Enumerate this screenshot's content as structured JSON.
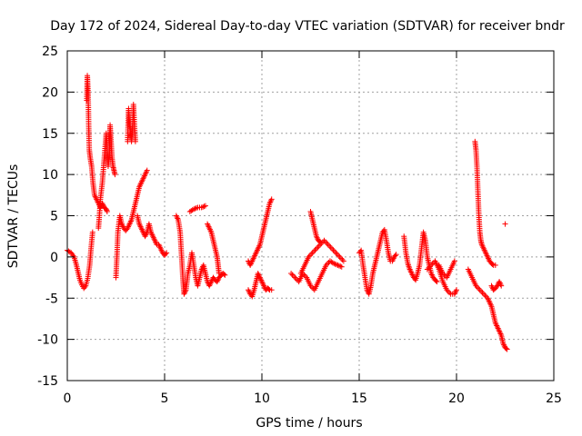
{
  "chart_data": {
    "type": "scatter",
    "title": "Day 172 of 2024, Sidereal Day-to-day VTEC variation (SDTVAR) for receiver bndr",
    "xlabel": "GPS time / hours",
    "ylabel": "SDTVAR / TECUs",
    "xlim": [
      0,
      25
    ],
    "ylim": [
      -15,
      25
    ],
    "xticks": [
      "0",
      "5",
      "10",
      "15",
      "20",
      "25"
    ],
    "yticks": [
      "-15",
      "-10",
      "-5",
      "0",
      "5",
      "10",
      "15",
      "20",
      "25"
    ],
    "grid": true,
    "marker": "plus",
    "color": "#ff0000",
    "segments": [
      [
        [
          0.0,
          0.8
        ],
        [
          0.2,
          0.5
        ],
        [
          0.35,
          0.0
        ],
        [
          0.45,
          -0.8
        ],
        [
          0.55,
          -1.8
        ],
        [
          0.65,
          -2.8
        ],
        [
          0.75,
          -3.4
        ],
        [
          0.85,
          -3.8
        ],
        [
          0.95,
          -3.5
        ],
        [
          1.05,
          -2.6
        ],
        [
          1.15,
          -1.0
        ],
        [
          1.22,
          1.0
        ],
        [
          1.3,
          3.0
        ]
      ],
      [
        [
          1.0,
          19.0
        ],
        [
          1.03,
          22.0
        ],
        [
          1.07,
          20.0
        ],
        [
          1.1,
          16.0
        ],
        [
          1.13,
          13.0
        ],
        [
          1.18,
          12.0
        ],
        [
          1.25,
          11.0
        ],
        [
          1.32,
          9.0
        ],
        [
          1.4,
          7.5
        ],
        [
          1.5,
          7.0
        ],
        [
          1.6,
          6.5
        ],
        [
          1.7,
          6.0
        ],
        [
          1.8,
          6.5
        ],
        [
          1.9,
          6.0
        ],
        [
          2.0,
          5.8
        ],
        [
          2.05,
          5.5
        ]
      ],
      [
        [
          1.6,
          3.5
        ],
        [
          1.65,
          5.0
        ],
        [
          1.7,
          7.0
        ],
        [
          1.8,
          9.0
        ],
        [
          1.9,
          12.0
        ],
        [
          2.0,
          15.0
        ],
        [
          2.05,
          13.0
        ],
        [
          2.1,
          11.0
        ],
        [
          2.15,
          12.5
        ],
        [
          2.2,
          16.0
        ],
        [
          2.25,
          14.0
        ],
        [
          2.3,
          12.0
        ],
        [
          2.35,
          11.0
        ],
        [
          2.4,
          10.5
        ],
        [
          2.45,
          10.0
        ]
      ],
      [
        [
          2.5,
          -2.5
        ],
        [
          2.55,
          0.0
        ],
        [
          2.6,
          3.0
        ],
        [
          2.7,
          5.0
        ],
        [
          2.8,
          4.0
        ],
        [
          2.9,
          3.5
        ],
        [
          3.0,
          3.2
        ],
        [
          3.1,
          3.5
        ],
        [
          3.2,
          4.0
        ],
        [
          3.3,
          4.5
        ],
        [
          3.4,
          5.5
        ],
        [
          3.5,
          6.5
        ],
        [
          3.6,
          7.5
        ],
        [
          3.7,
          8.5
        ],
        [
          3.8,
          9.0
        ],
        [
          3.9,
          9.5
        ],
        [
          4.0,
          10.0
        ],
        [
          4.1,
          10.5
        ]
      ],
      [
        [
          3.1,
          14.0
        ],
        [
          3.15,
          18.0
        ],
        [
          3.2,
          16.0
        ],
        [
          3.25,
          15.0
        ],
        [
          3.3,
          14.0
        ],
        [
          3.35,
          15.5
        ],
        [
          3.4,
          18.5
        ],
        [
          3.45,
          16.0
        ],
        [
          3.5,
          14.0
        ]
      ],
      [
        [
          3.6,
          5.0
        ],
        [
          3.7,
          4.0
        ],
        [
          3.8,
          3.5
        ],
        [
          3.9,
          3.0
        ],
        [
          4.0,
          2.5
        ],
        [
          4.1,
          3.0
        ],
        [
          4.2,
          4.0
        ],
        [
          4.3,
          3.0
        ],
        [
          4.4,
          2.5
        ],
        [
          4.5,
          2.0
        ],
        [
          4.6,
          1.5
        ],
        [
          4.7,
          1.5
        ],
        [
          4.8,
          1.0
        ],
        [
          4.9,
          0.5
        ],
        [
          5.0,
          0.2
        ],
        [
          5.1,
          0.5
        ]
      ],
      [
        [
          5.6,
          5.0
        ],
        [
          5.7,
          4.5
        ],
        [
          5.8,
          3.0
        ],
        [
          5.85,
          1.0
        ],
        [
          5.9,
          -1.0
        ],
        [
          5.95,
          -3.0
        ],
        [
          6.0,
          -4.5
        ],
        [
          6.1,
          -4.0
        ],
        [
          6.2,
          -2.0
        ],
        [
          6.3,
          -1.0
        ],
        [
          6.4,
          0.5
        ],
        [
          6.5,
          -1.0
        ],
        [
          6.6,
          -2.5
        ],
        [
          6.7,
          -3.5
        ],
        [
          6.8,
          -2.5
        ],
        [
          6.9,
          -1.5
        ],
        [
          7.0,
          -1.0
        ],
        [
          7.1,
          -2.0
        ],
        [
          7.2,
          -3.0
        ],
        [
          7.3,
          -3.5
        ],
        [
          7.4,
          -3.0
        ],
        [
          7.5,
          -2.5
        ],
        [
          7.6,
          -2.8
        ],
        [
          7.7,
          -3.0
        ],
        [
          7.8,
          -2.5
        ],
        [
          7.9,
          -2.2
        ],
        [
          8.0,
          -2.0
        ],
        [
          8.1,
          -2.2
        ]
      ],
      [
        [
          6.3,
          5.5
        ],
        [
          6.5,
          5.8
        ],
        [
          6.7,
          6.0
        ],
        [
          6.9,
          6.0
        ],
        [
          7.1,
          6.2
        ]
      ],
      [
        [
          7.2,
          4.0
        ],
        [
          7.3,
          3.5
        ],
        [
          7.4,
          3.0
        ],
        [
          7.5,
          2.0
        ],
        [
          7.6,
          1.0
        ],
        [
          7.7,
          0.0
        ],
        [
          7.75,
          -1.0
        ],
        [
          7.8,
          -2.0
        ]
      ],
      [
        [
          9.3,
          -4.0
        ],
        [
          9.4,
          -4.5
        ],
        [
          9.5,
          -4.8
        ],
        [
          9.6,
          -4.0
        ],
        [
          9.7,
          -3.0
        ],
        [
          9.8,
          -2.0
        ],
        [
          9.9,
          -2.5
        ],
        [
          10.0,
          -3.0
        ],
        [
          10.1,
          -3.5
        ],
        [
          10.2,
          -4.0
        ],
        [
          10.3,
          -3.8
        ],
        [
          10.4,
          -4.0
        ],
        [
          10.5,
          -4.0
        ]
      ],
      [
        [
          9.3,
          -0.5
        ],
        [
          9.4,
          -1.0
        ],
        [
          9.5,
          -0.5
        ],
        [
          9.6,
          0.0
        ],
        [
          9.7,
          0.5
        ],
        [
          9.8,
          1.0
        ],
        [
          9.9,
          1.5
        ],
        [
          10.0,
          2.5
        ],
        [
          10.1,
          3.5
        ],
        [
          10.2,
          4.5
        ],
        [
          10.3,
          5.5
        ],
        [
          10.4,
          6.5
        ],
        [
          10.5,
          7.0
        ]
      ],
      [
        [
          11.5,
          -2.0
        ],
        [
          11.7,
          -2.5
        ],
        [
          11.9,
          -3.0
        ],
        [
          12.1,
          -2.0
        ],
        [
          12.3,
          -2.5
        ],
        [
          12.5,
          -3.5
        ],
        [
          12.7,
          -4.0
        ],
        [
          12.9,
          -3.0
        ],
        [
          13.1,
          -2.0
        ],
        [
          13.3,
          -1.0
        ],
        [
          13.5,
          -0.5
        ],
        [
          13.7,
          -0.8
        ],
        [
          13.9,
          -1.0
        ],
        [
          14.1,
          -1.2
        ]
      ],
      [
        [
          12.0,
          -2.0
        ],
        [
          12.2,
          -1.0
        ],
        [
          12.4,
          0.0
        ],
        [
          12.6,
          0.5
        ],
        [
          12.8,
          1.0
        ],
        [
          13.0,
          1.5
        ],
        [
          13.2,
          2.0
        ],
        [
          13.4,
          1.5
        ],
        [
          13.6,
          1.0
        ],
        [
          13.8,
          0.5
        ],
        [
          14.0,
          0.0
        ],
        [
          14.2,
          -0.5
        ]
      ],
      [
        [
          12.5,
          5.5
        ],
        [
          12.6,
          4.5
        ],
        [
          12.7,
          3.5
        ],
        [
          12.8,
          2.5
        ],
        [
          12.9,
          2.0
        ],
        [
          13.0,
          1.8
        ]
      ],
      [
        [
          15.0,
          0.5
        ],
        [
          15.1,
          0.8
        ],
        [
          15.2,
          -1.0
        ],
        [
          15.3,
          -2.5
        ],
        [
          15.4,
          -4.0
        ],
        [
          15.5,
          -4.5
        ],
        [
          15.6,
          -3.5
        ],
        [
          15.7,
          -2.0
        ],
        [
          15.8,
          -1.0
        ],
        [
          15.9,
          0.0
        ],
        [
          16.0,
          1.0
        ],
        [
          16.1,
          2.0
        ],
        [
          16.2,
          3.0
        ],
        [
          16.3,
          3.3
        ],
        [
          16.4,
          2.0
        ],
        [
          16.5,
          0.5
        ],
        [
          16.6,
          -0.5
        ],
        [
          16.7,
          -0.5
        ],
        [
          16.8,
          0.0
        ],
        [
          16.9,
          0.3
        ]
      ],
      [
        [
          17.3,
          2.5
        ],
        [
          17.4,
          0.5
        ],
        [
          17.5,
          -0.8
        ],
        [
          17.6,
          -1.5
        ],
        [
          17.7,
          -2.0
        ],
        [
          17.8,
          -2.5
        ],
        [
          17.9,
          -2.8
        ],
        [
          18.0,
          -2.0
        ],
        [
          18.1,
          -1.0
        ],
        [
          18.2,
          1.0
        ],
        [
          18.3,
          3.0
        ],
        [
          18.4,
          2.0
        ],
        [
          18.5,
          0.0
        ],
        [
          18.6,
          -1.0
        ],
        [
          18.7,
          -2.0
        ],
        [
          18.8,
          -2.5
        ],
        [
          18.9,
          -2.8
        ],
        [
          19.0,
          -3.0
        ]
      ],
      [
        [
          18.5,
          -1.5
        ],
        [
          18.7,
          -1.0
        ],
        [
          18.9,
          -0.5
        ],
        [
          19.1,
          -1.5
        ],
        [
          19.3,
          -3.0
        ],
        [
          19.5,
          -4.0
        ],
        [
          19.7,
          -4.5
        ],
        [
          19.9,
          -4.5
        ],
        [
          20.0,
          -4.0
        ]
      ],
      [
        [
          19.1,
          -1.0
        ],
        [
          19.3,
          -2.0
        ],
        [
          19.5,
          -2.5
        ],
        [
          19.7,
          -1.5
        ],
        [
          19.9,
          -0.5
        ]
      ],
      [
        [
          20.6,
          -1.5
        ],
        [
          20.8,
          -2.5
        ],
        [
          21.0,
          -3.5
        ],
        [
          21.2,
          -4.0
        ],
        [
          21.4,
          -4.5
        ],
        [
          21.6,
          -5.0
        ],
        [
          21.7,
          -5.5
        ],
        [
          21.8,
          -6.0
        ],
        [
          21.9,
          -7.0
        ],
        [
          22.0,
          -8.0
        ],
        [
          22.1,
          -8.5
        ],
        [
          22.2,
          -9.0
        ],
        [
          22.3,
          -9.5
        ],
        [
          22.4,
          -10.5
        ],
        [
          22.5,
          -11.0
        ],
        [
          22.6,
          -11.2
        ]
      ],
      [
        [
          20.95,
          14.0
        ],
        [
          21.0,
          13.0
        ],
        [
          21.05,
          11.0
        ],
        [
          21.1,
          8.0
        ],
        [
          21.15,
          5.0
        ],
        [
          21.2,
          3.0
        ],
        [
          21.25,
          2.0
        ],
        [
          21.3,
          1.5
        ],
        [
          21.4,
          1.0
        ],
        [
          21.5,
          0.5
        ],
        [
          21.6,
          0.0
        ],
        [
          21.7,
          -0.5
        ],
        [
          21.8,
          -0.8
        ],
        [
          21.9,
          -1.0
        ],
        [
          22.0,
          -1.0
        ]
      ],
      [
        [
          21.8,
          -3.5
        ],
        [
          21.9,
          -4.0
        ],
        [
          22.0,
          -3.8
        ],
        [
          22.1,
          -3.5
        ],
        [
          22.2,
          -3.0
        ],
        [
          22.3,
          -3.5
        ]
      ],
      [
        [
          22.5,
          4.0
        ]
      ]
    ]
  }
}
